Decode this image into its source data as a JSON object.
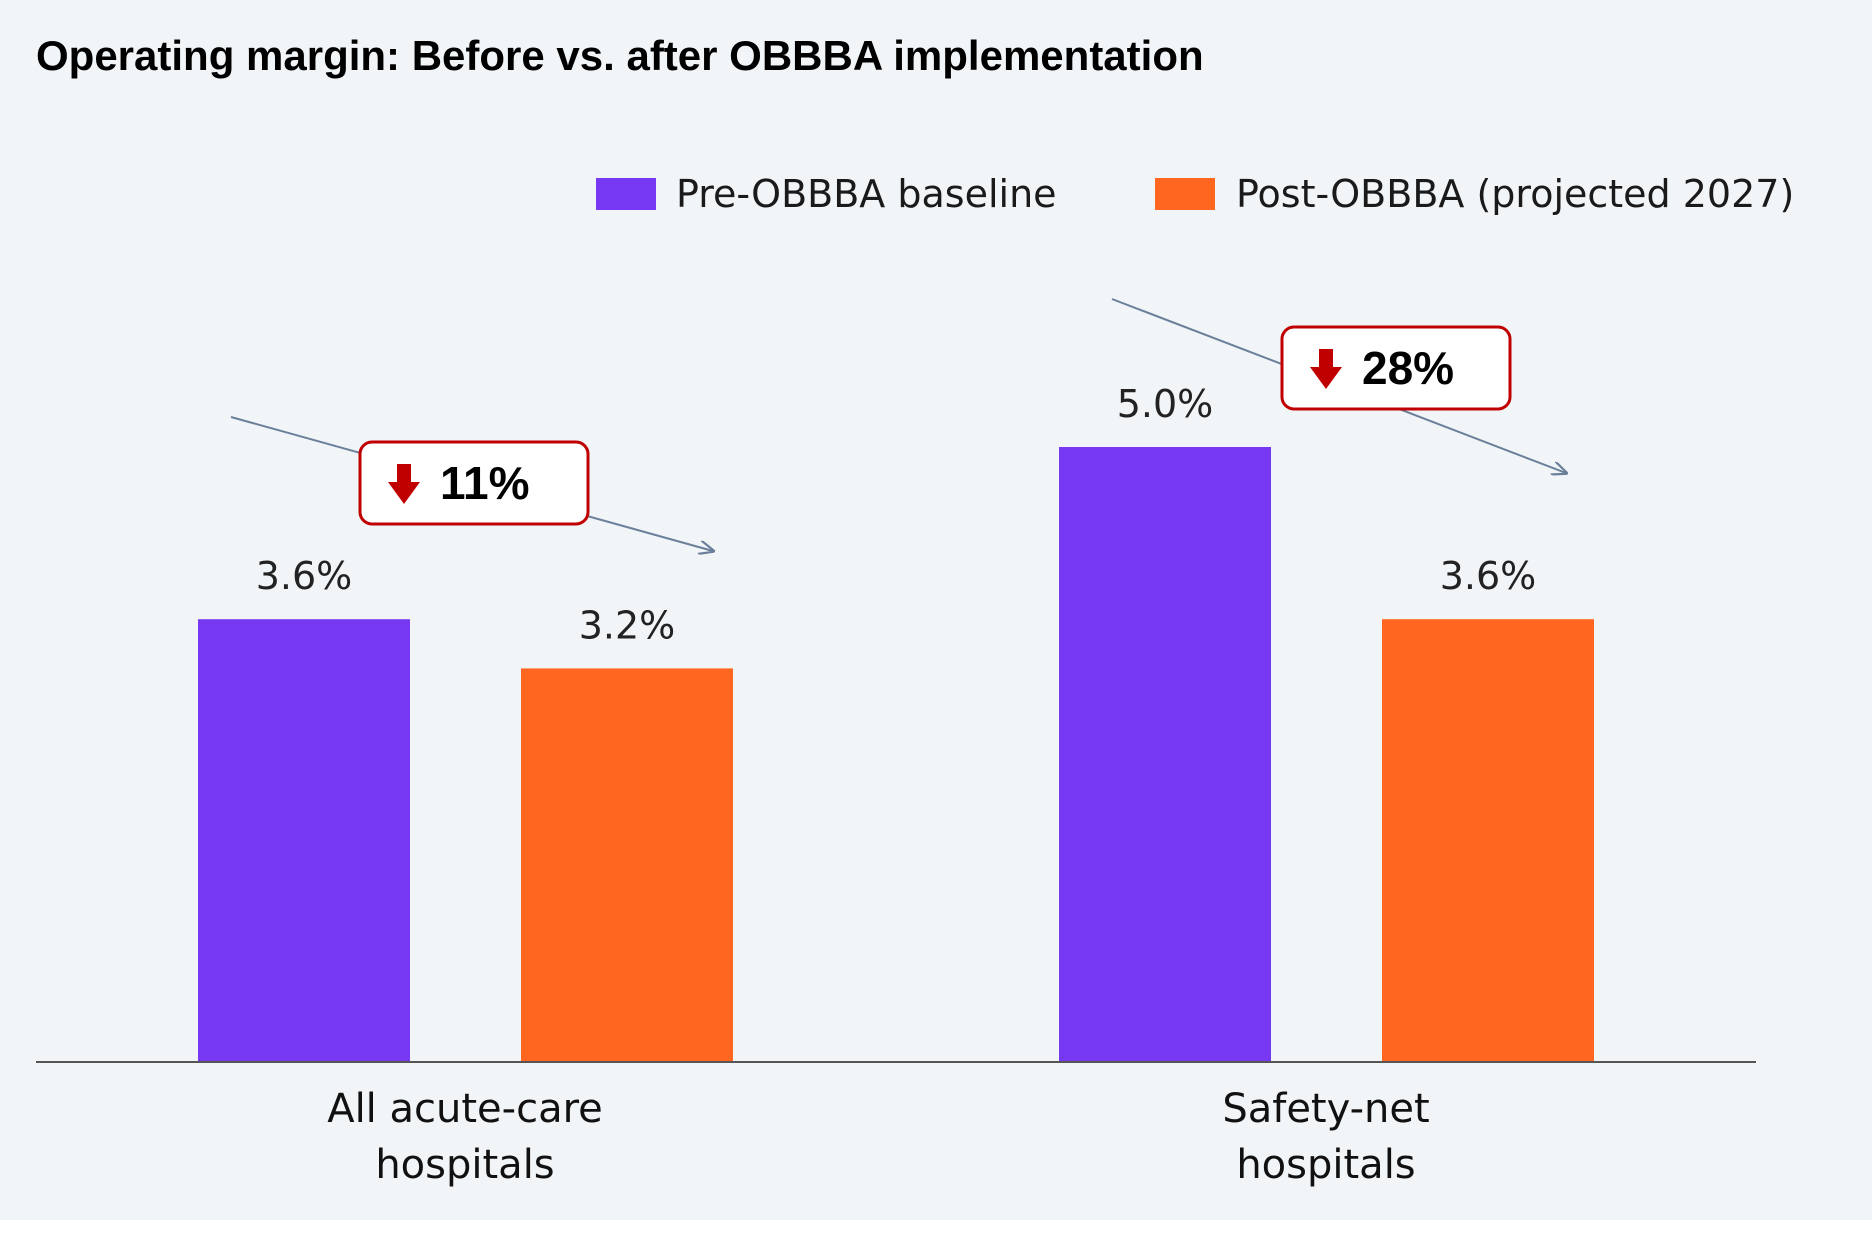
{
  "chart_data": {
    "type": "bar",
    "title": "Operating margin: Before vs. after OBBBA implementation",
    "categories": [
      [
        "All acute-care",
        "hospitals"
      ],
      [
        "Safety-net",
        "hospitals"
      ]
    ],
    "series": [
      {
        "name": "Pre-OBBBA baseline",
        "color": "#7638f0",
        "values": [
          3.6,
          5.0
        ],
        "labels": [
          "3.6%",
          "5.0%"
        ]
      },
      {
        "name": "Post-OBBBA (projected 2027)",
        "color": "#ff6620",
        "values": [
          3.2,
          3.6
        ],
        "labels": [
          "3.2%",
          "3.6%"
        ]
      }
    ],
    "ylim": [
      0,
      5.0
    ],
    "grid": false,
    "legend_position": "top-right",
    "annotations": [
      {
        "category_index": 0,
        "icon": "down-arrow-icon",
        "text": "11%"
      },
      {
        "category_index": 1,
        "icon": "down-arrow-icon",
        "text": "28%"
      }
    ],
    "colors": {
      "badge_border": "#c00000",
      "arrow_icon": "#c00000",
      "trend_arrow": "#6a7f99",
      "axis": "#555555"
    }
  }
}
